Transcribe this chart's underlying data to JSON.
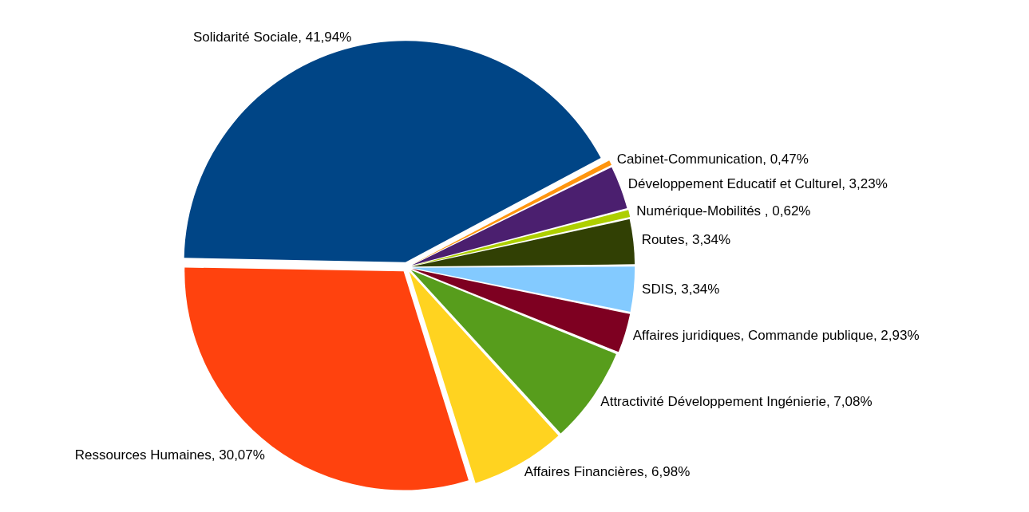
{
  "chart_data": {
    "type": "pie",
    "categories": [
      "Solidarité Sociale",
      "Cabinet-Communication",
      "Développement Educatif et Culturel",
      "Numérique-Mobilités ",
      "Routes",
      "SDIS",
      "Affaires juridiques, Commande publique",
      "Attractivité Développement Ingénierie",
      "Affaires Financières",
      "Ressources Humaines"
    ],
    "values": [
      41.94,
      0.47,
      3.23,
      0.62,
      3.34,
      3.34,
      2.93,
      7.08,
      6.98,
      30.07
    ],
    "value_labels": [
      "41,94%",
      "0,47%",
      "3,23%",
      "0,62%",
      "3,34%",
      "3,34%",
      "2,93%",
      "7,08%",
      "6,98%",
      "30,07%"
    ],
    "colors": [
      "#004586",
      "#ff950e",
      "#4b1f6f",
      "#aecf00",
      "#314004",
      "#83caff",
      "#7e0021",
      "#579d1c",
      "#ffd320",
      "#ff420e"
    ],
    "legend": false
  }
}
